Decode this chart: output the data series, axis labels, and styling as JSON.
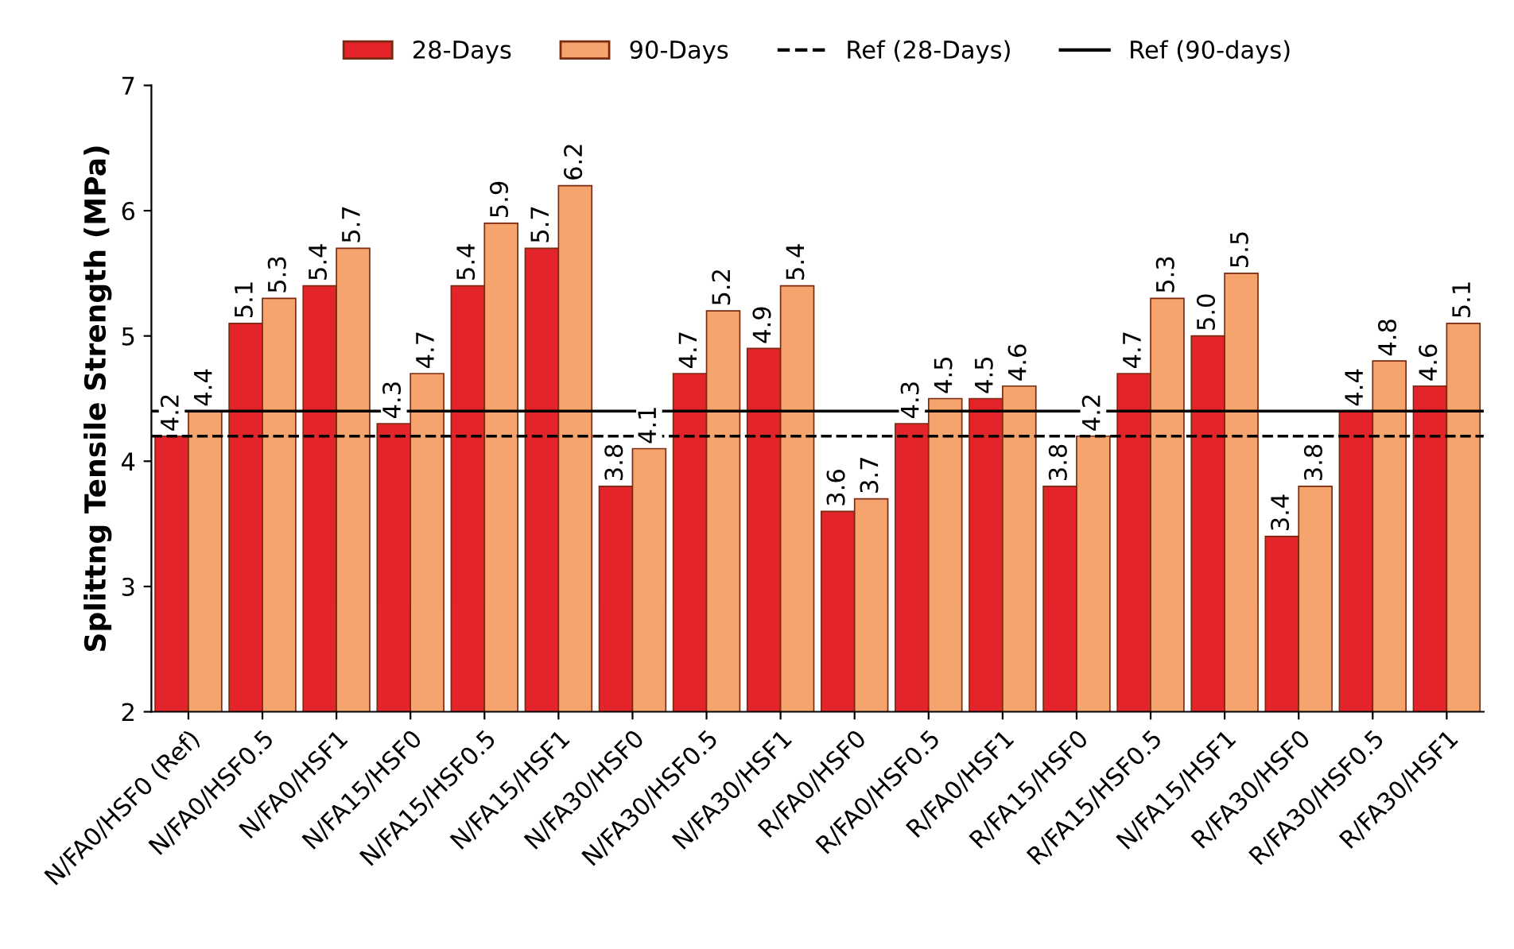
{
  "chart_data": {
    "type": "bar",
    "ylabel": "Splittng Tensile Strength (MPa)",
    "categories": [
      "N/FA0/HSF0 (Ref)",
      "N/FA0/HSF0.5",
      "N/FA0/HSF1",
      "N/FA15/HSF0",
      "N/FA15/HSF0.5",
      "N/FA15/HSF1",
      "N/FA30/HSF0",
      "N/FA30/HSF0.5",
      "N/FA30/HSF1",
      "R/FA0/HSF0",
      "R/FA0/HSF0.5",
      "R/FA0/HSF1",
      "R/FA15/HSF0",
      "R/FA15/HSF0.5",
      "N/FA15/HSF1",
      "R/FA30/HSF0",
      "R/FA30/HSF0.5",
      "R/FA30/HSF1"
    ],
    "series": [
      {
        "name": "28-Days",
        "color": "#e3242b",
        "values": [
          4.2,
          5.1,
          5.4,
          4.3,
          5.4,
          5.7,
          3.8,
          4.7,
          4.9,
          3.6,
          4.3,
          4.5,
          3.8,
          4.7,
          5.0,
          3.4,
          4.4,
          4.6
        ],
        "value_labels": [
          "4.2",
          "5.1",
          "5.4",
          "4.3",
          "5.4",
          "5.7",
          "3.8",
          "4.7",
          "4.9",
          "3.6",
          "4.3",
          "4.5",
          "3.8",
          "4.7",
          "5.0",
          "3.4",
          "4.4",
          "4.6"
        ]
      },
      {
        "name": "90-Days",
        "color": "#f4a46c",
        "values": [
          4.4,
          5.3,
          5.7,
          4.7,
          5.9,
          6.2,
          4.1,
          5.2,
          5.4,
          3.7,
          4.5,
          4.6,
          4.2,
          5.3,
          5.5,
          3.8,
          4.8,
          5.1
        ],
        "value_labels": [
          "4.4",
          "5.3",
          "5.7",
          "4.7",
          "5.9",
          "6.2",
          "4.1",
          "5.2",
          "5.4",
          "3.7",
          "4.5",
          "4.6",
          "4.2",
          "5.3",
          "5.5",
          "3.8",
          "4.8",
          "5.1"
        ]
      }
    ],
    "ref_lines": [
      {
        "axis": "y",
        "value": 4.2,
        "label": "Ref (28-Days)",
        "line_style": "dashed",
        "color": "#000000"
      },
      {
        "axis": "y",
        "value": 4.4,
        "label": "Ref (90-days)",
        "line_style": "solid",
        "color": "#000000"
      }
    ],
    "ylim": [
      2,
      7
    ],
    "yticks": [
      2,
      3,
      4,
      5,
      6,
      7
    ],
    "grid": false,
    "legend": "top"
  }
}
